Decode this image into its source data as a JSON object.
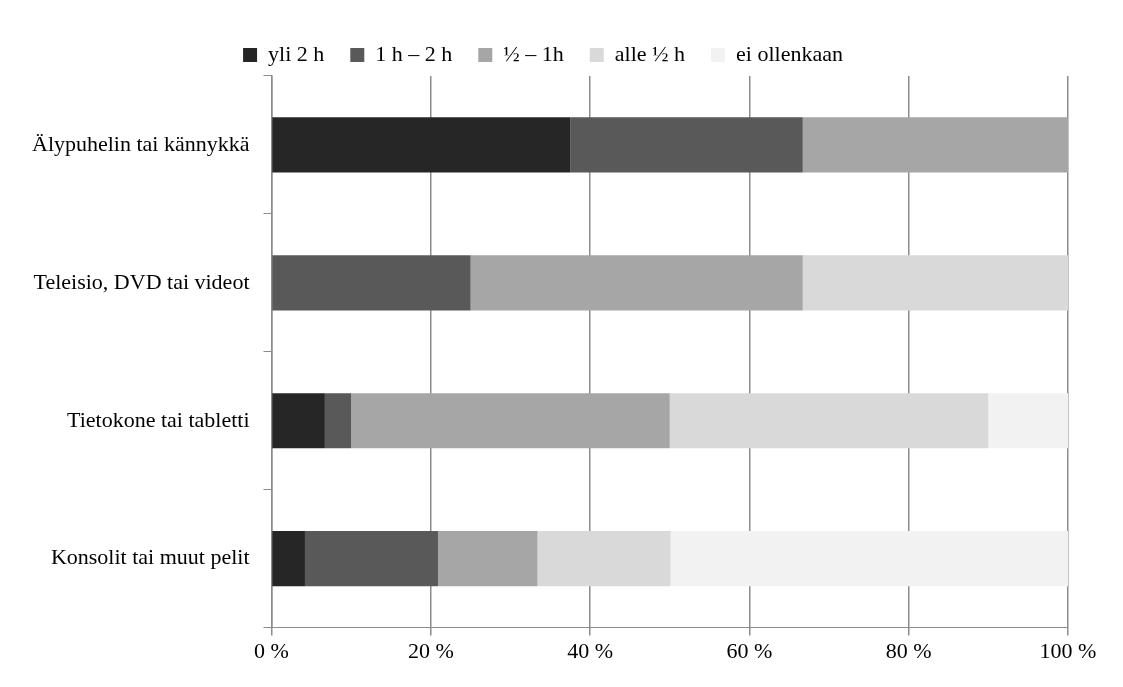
{
  "chart_data": {
    "type": "bar",
    "orientation": "horizontal",
    "stacked": true,
    "categories": [
      "Älypuhelin tai kännykkä",
      "Teleisio, DVD tai videot",
      "Tietokone tai tabletti",
      "Konsolit tai muut pelit"
    ],
    "series": [
      {
        "name": "yli 2 h",
        "color": "#262626",
        "values": [
          37.5,
          0,
          6.7,
          4.2
        ]
      },
      {
        "name": "1 h – 2 h",
        "color": "#595959",
        "values": [
          29.2,
          25,
          3.3,
          16.7
        ]
      },
      {
        "name": "½ – 1h",
        "color": "#a6a6a6",
        "values": [
          33.3,
          41.7,
          40,
          12.5
        ]
      },
      {
        "name": "alle ½ h",
        "color": "#d9d9d9",
        "values": [
          0,
          33.3,
          40,
          16.7
        ]
      },
      {
        "name": "ei ollenkaan",
        "color": "#f2f2f2",
        "values": [
          0,
          0,
          10,
          50
        ]
      }
    ],
    "xlim": [
      0,
      100
    ],
    "xticks": [
      {
        "value": 0,
        "label": "0 %"
      },
      {
        "value": 20,
        "label": "20 %"
      },
      {
        "value": 40,
        "label": "40 %"
      },
      {
        "value": 60,
        "label": "60 %"
      },
      {
        "value": 80,
        "label": "80 %"
      },
      {
        "value": 100,
        "label": "100 %"
      }
    ],
    "grid": "x",
    "legend": "top"
  }
}
